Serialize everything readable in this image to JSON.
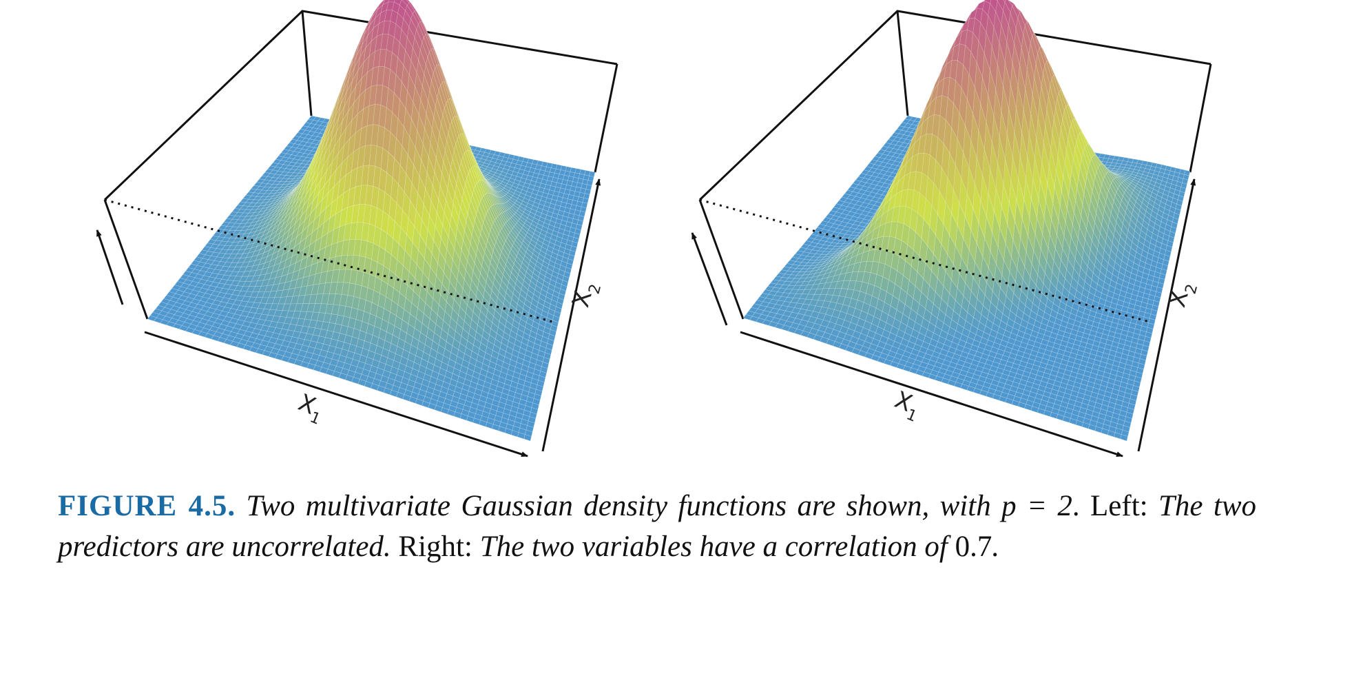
{
  "figure": {
    "panels": [
      {
        "name": "Left",
        "x_axis_label": "X",
        "x_axis_subscript": "1",
        "y_axis_label": "X",
        "y_axis_subscript": "2",
        "correlation": 0.0
      },
      {
        "name": "Right",
        "x_axis_label": "X",
        "x_axis_subscript": "1",
        "y_axis_label": "X",
        "y_axis_subscript": "2",
        "correlation": 0.7
      }
    ],
    "colors": {
      "low": "#4f98cf",
      "mid": "#cfe04a",
      "high": "#c0548e",
      "box": "#111111"
    }
  },
  "caption": {
    "label": "FIGURE 4.5.",
    "part1": "Two multivariate Gaussian density functions are shown, with",
    "math": "p = 2",
    "part2": ". Left: ",
    "part3": "The two predictors are uncorrelated.",
    "part4": " Right: ",
    "part5": "The two variables have a correlation of",
    "value": "0.7",
    "end": "."
  }
}
